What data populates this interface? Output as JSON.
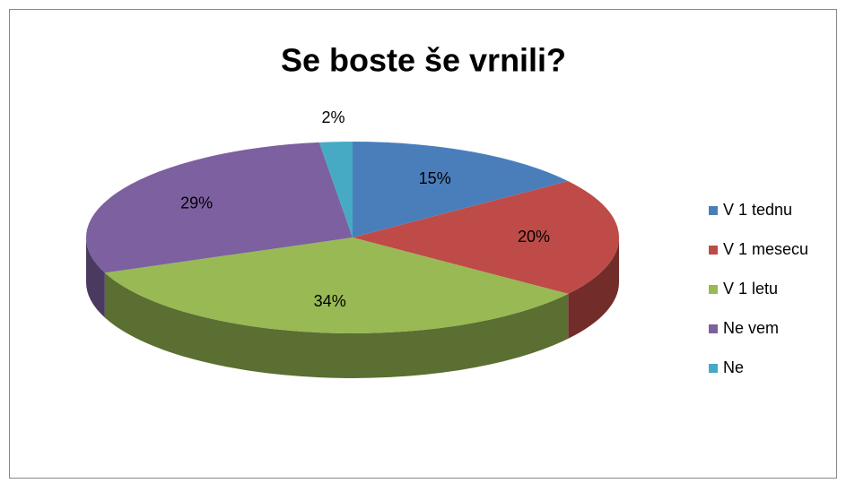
{
  "chart_data": {
    "type": "pie",
    "title": "Se boste še vrnili?",
    "categories": [
      "V 1 tednu",
      "V 1 mesecu",
      "V 1 letu",
      "Ne vem",
      "Ne"
    ],
    "values": [
      15,
      20,
      34,
      29,
      2
    ],
    "value_labels": [
      "15%",
      "20%",
      "34%",
      "29%",
      "2%"
    ],
    "colors": [
      "#4a7ebb",
      "#be4b48",
      "#98b954",
      "#7d60a0",
      "#46aac5"
    ],
    "legend": "right"
  }
}
